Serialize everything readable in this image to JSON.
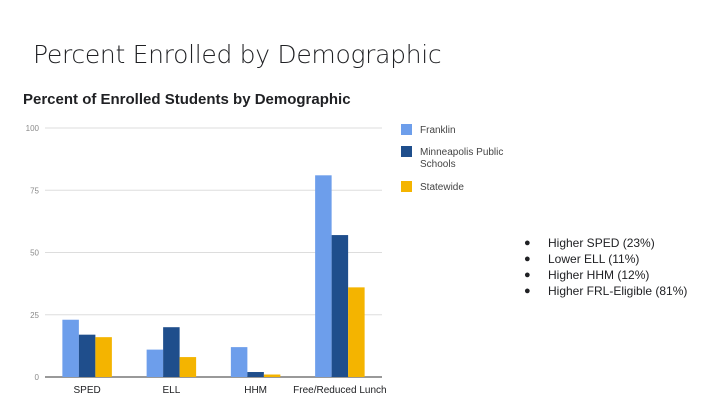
{
  "slide": {
    "title": "Percent Enrolled by Demographic",
    "bullets": [
      "Higher SPED (23%)",
      "Lower ELL (11%)",
      "Higher HHM (12%)",
      "Higher FRL-Eligible (81%)"
    ]
  },
  "chart_data": {
    "type": "bar",
    "title": "Percent of Enrolled Students by Demographic",
    "xlabel": "",
    "ylabel": "",
    "ylim": [
      0,
      100
    ],
    "yticks": [
      0,
      25,
      50,
      75,
      100
    ],
    "grid": true,
    "legend_position": "right",
    "categories": [
      "SPED",
      "ELL",
      "HHM",
      "Free/Reduced Lunch"
    ],
    "series": [
      {
        "name": "Franklin",
        "color": "#6d9eeb",
        "values": [
          23,
          11,
          12,
          81
        ]
      },
      {
        "name": "Minneapolis Public Schools",
        "legend_lines": [
          "Minneapolis Public",
          "Schools"
        ],
        "color": "#1f4e8c",
        "values": [
          17,
          20,
          2,
          57
        ]
      },
      {
        "name": "Statewide",
        "color": "#f4b400",
        "values": [
          16,
          8,
          1,
          36
        ]
      }
    ]
  }
}
